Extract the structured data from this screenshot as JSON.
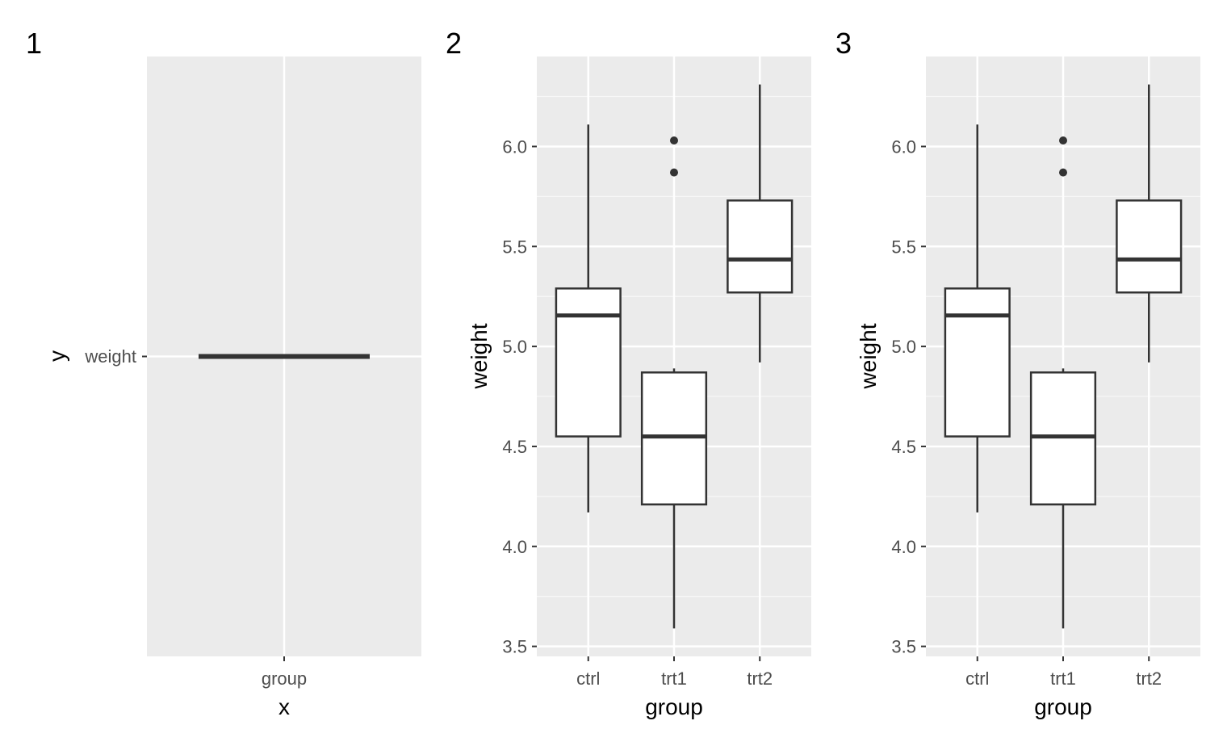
{
  "panels": [
    {
      "tag": "1",
      "xlabel": "x",
      "ylabel": "y",
      "x_tick": "group",
      "y_tick": "weight"
    }
  ],
  "chart_data": [
    {
      "type": "boxplot",
      "tag": "2",
      "xlabel": "group",
      "ylabel": "weight",
      "categories": [
        "ctrl",
        "trt1",
        "trt2"
      ],
      "ylim": [
        3.45,
        6.45
      ],
      "yticks": [
        3.5,
        4.0,
        4.5,
        5.0,
        5.5,
        6.0
      ],
      "ytick_labels": [
        "3.5",
        "4.0",
        "4.5",
        "5.0",
        "5.5",
        "6.0"
      ],
      "grid": true,
      "boxes": [
        {
          "category": "ctrl",
          "min": 4.17,
          "q1": 4.55,
          "median": 5.155,
          "q3": 5.29,
          "max": 6.11,
          "outliers": []
        },
        {
          "category": "trt1",
          "min": 3.59,
          "q1": 4.21,
          "median": 4.55,
          "q3": 4.87,
          "max": 4.89,
          "outliers": [
            5.87,
            6.03
          ]
        },
        {
          "category": "trt2",
          "min": 4.92,
          "q1": 5.27,
          "median": 5.435,
          "q3": 5.73,
          "max": 6.31,
          "outliers": []
        }
      ]
    },
    {
      "type": "boxplot",
      "tag": "3",
      "xlabel": "group",
      "ylabel": "weight",
      "categories": [
        "ctrl",
        "trt1",
        "trt2"
      ],
      "ylim": [
        3.45,
        6.45
      ],
      "yticks": [
        3.5,
        4.0,
        4.5,
        5.0,
        5.5,
        6.0
      ],
      "ytick_labels": [
        "3.5",
        "4.0",
        "4.5",
        "5.0",
        "5.5",
        "6.0"
      ],
      "grid": true,
      "boxes": [
        {
          "category": "ctrl",
          "min": 4.17,
          "q1": 4.55,
          "median": 5.155,
          "q3": 5.29,
          "max": 6.11,
          "outliers": []
        },
        {
          "category": "trt1",
          "min": 3.59,
          "q1": 4.21,
          "median": 4.55,
          "q3": 4.87,
          "max": 4.89,
          "outliers": [
            5.87,
            6.03
          ]
        },
        {
          "category": "trt2",
          "min": 4.92,
          "q1": 5.27,
          "median": 5.435,
          "q3": 5.73,
          "max": 6.31,
          "outliers": []
        }
      ]
    }
  ],
  "colors": {
    "panel_background": "#ebebeb",
    "grid_major": "#ffffff",
    "grid_minor": "#f7f7f7",
    "box_fill": "#ffffff",
    "box_line": "#333333",
    "tick_text": "#4d4d4d",
    "title_text": "#000000"
  }
}
